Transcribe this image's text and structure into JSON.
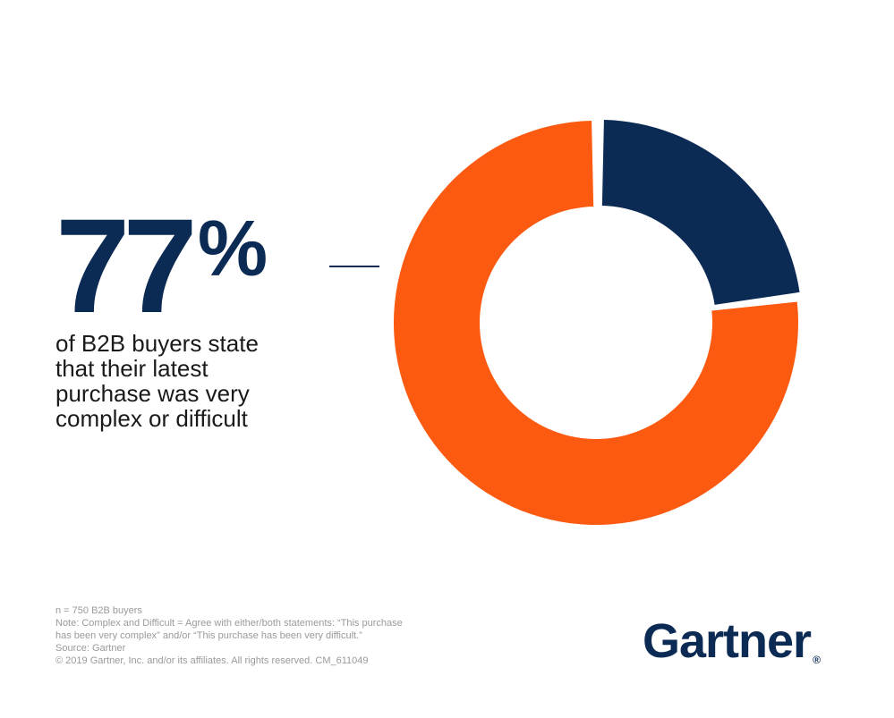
{
  "stat": {
    "digits": "77",
    "percent_sign": "%",
    "description_lines": [
      "of B2B buyers state",
      "that their latest",
      "purchase was very",
      "complex or difficult"
    ]
  },
  "chart_data": {
    "type": "pie",
    "donut": true,
    "slices": [
      {
        "label": "",
        "value": 23,
        "color": "#0b2a54"
      },
      {
        "label": "",
        "value": 77,
        "color": "#fc5a10"
      }
    ]
  },
  "footnotes": [
    "n = 750 B2B buyers",
    "Note: Complex and Difficult = Agree with either/both statements: “This purchase",
    "has been very complex” and/or “This purchase has been very difficult.”",
    "Source: Gartner",
    "© 2019 Gartner, Inc. and/or its affiliates. All rights reserved. CM_611049"
  ],
  "logo": {
    "text": "Gartner",
    "mark": "®"
  }
}
